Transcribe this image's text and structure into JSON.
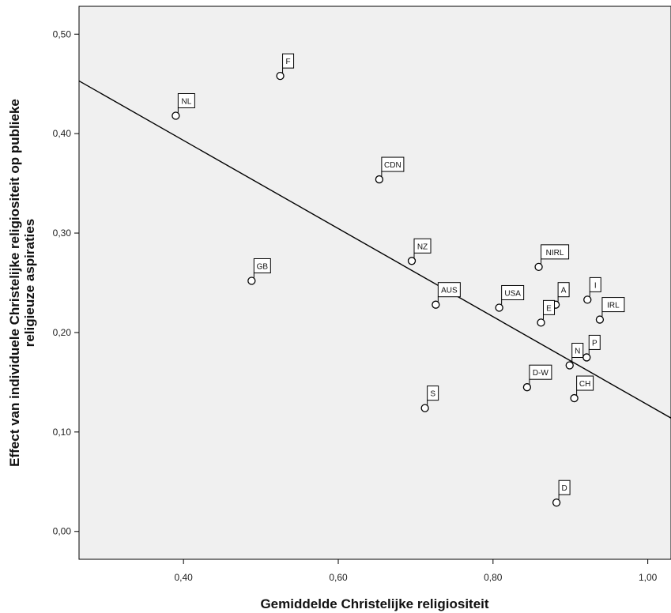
{
  "chart_data": {
    "type": "scatter",
    "title": "",
    "xlabel": "Gemiddelde Christelijke religiositeit",
    "ylabel_lines": [
      "Effect van individuele Christelijke religiositeit op publieke",
      "religieuze aspiraties"
    ],
    "xlim": [
      0.265,
      1.03
    ],
    "ylim": [
      -0.028,
      0.528
    ],
    "x_ticks": [
      0.4,
      0.6,
      0.8,
      1.0
    ],
    "x_tick_labels": [
      "0,40",
      "0,60",
      "0,80",
      "1,00"
    ],
    "y_ticks": [
      0.0,
      0.1,
      0.2,
      0.3,
      0.4,
      0.5
    ],
    "y_tick_labels": [
      "0,00",
      "0,10",
      "0,20",
      "0,30",
      "0,40",
      "0,50"
    ],
    "grid": false,
    "plot_background": "#f0f0f0",
    "marker": "open-circle",
    "points": [
      {
        "label": "NL",
        "x": 0.39,
        "y": 0.418
      },
      {
        "label": "F",
        "x": 0.525,
        "y": 0.458
      },
      {
        "label": "GB",
        "x": 0.488,
        "y": 0.252
      },
      {
        "label": "CDN",
        "x": 0.653,
        "y": 0.354
      },
      {
        "label": "NZ",
        "x": 0.695,
        "y": 0.272
      },
      {
        "label": "AUS",
        "x": 0.726,
        "y": 0.228
      },
      {
        "label": "S",
        "x": 0.712,
        "y": 0.124
      },
      {
        "label": "USA",
        "x": 0.808,
        "y": 0.225
      },
      {
        "label": "NIRL",
        "x": 0.859,
        "y": 0.266
      },
      {
        "label": "A",
        "x": 0.881,
        "y": 0.228
      },
      {
        "label": "E",
        "x": 0.862,
        "y": 0.21
      },
      {
        "label": "I",
        "x": 0.922,
        "y": 0.233
      },
      {
        "label": "IRL",
        "x": 0.938,
        "y": 0.213
      },
      {
        "label": "D-W",
        "x": 0.844,
        "y": 0.145
      },
      {
        "label": "N",
        "x": 0.899,
        "y": 0.167
      },
      {
        "label": "P",
        "x": 0.921,
        "y": 0.175
      },
      {
        "label": "CH",
        "x": 0.905,
        "y": 0.134
      },
      {
        "label": "D",
        "x": 0.882,
        "y": 0.029
      }
    ],
    "fit_line": {
      "x": [
        0.265,
        1.03
      ],
      "y": [
        0.453,
        0.114
      ]
    }
  }
}
